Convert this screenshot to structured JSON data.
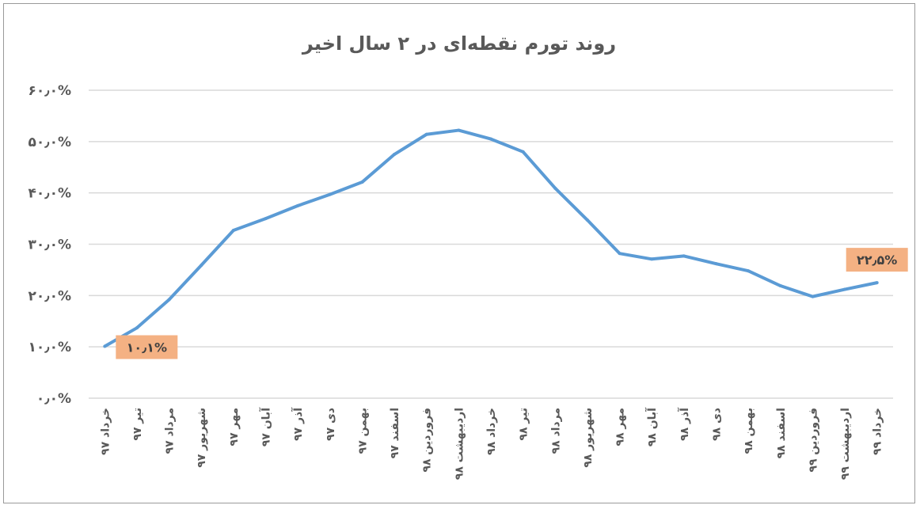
{
  "chart_data": {
    "type": "line",
    "title": "روند تورم نقطه‌ای در ۲ سال اخیر",
    "categories": [
      "خرداد ۹۷",
      "تیر ۹۷",
      "مرداد ۹۷",
      "شهریور ۹۷",
      "مهر ۹۷",
      "آبان ۹۷",
      "آذر ۹۷",
      "دی ۹۷",
      "بهمن ۹۷",
      "اسفند ۹۷",
      "فروردین ۹۸",
      "اردیبهشت ۹۸",
      "خرداد ۹۸",
      "تیر ۹۸",
      "مرداد ۹۸",
      "شهریور ۹۸",
      "مهر ۹۸",
      "آبان ۹۸",
      "آذر ۹۸",
      "دی ۹۸",
      "بهمن ۹۸",
      "اسفند ۹۸",
      "فروردین ۹۹",
      "اردیبهشت ۹۹",
      "خرداد ۹۹"
    ],
    "series": [
      {
        "values": [
          10.1,
          13.7,
          19.2,
          25.9,
          32.7,
          35.0,
          37.5,
          39.7,
          42.1,
          47.5,
          51.4,
          52.2,
          50.5,
          48.0,
          40.9,
          34.7,
          28.2,
          27.1,
          27.7,
          26.2,
          24.8,
          21.9,
          19.8,
          21.2,
          22.5
        ]
      }
    ],
    "ylim": [
      0,
      60
    ],
    "yticks": [
      0,
      10,
      20,
      30,
      40,
      50,
      60
    ],
    "ytick_labels": [
      "۰٫۰%",
      "۱۰٫۰%",
      "۲۰٫۰%",
      "۳۰٫۰%",
      "۴۰٫۰%",
      "۵۰٫۰%",
      "۶۰٫۰%"
    ],
    "data_labels": [
      {
        "index": 0,
        "text": "۱۰٫۱%"
      },
      {
        "index": 24,
        "text": "۲۲٫۵%"
      }
    ],
    "grid": true,
    "legend": "none",
    "colors": {
      "line": "#5b9bd5",
      "label_bg": "#f4b183",
      "grid": "#d9d9d9"
    }
  }
}
